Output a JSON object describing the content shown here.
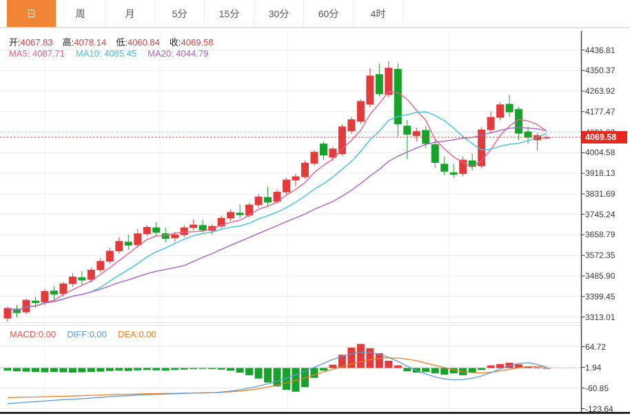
{
  "tabs": {
    "items": [
      {
        "label": "日",
        "active": true
      },
      {
        "label": "周",
        "active": false
      },
      {
        "label": "月",
        "active": false
      },
      {
        "label": "5分",
        "active": false
      },
      {
        "label": "15分",
        "active": false
      },
      {
        "label": "30分",
        "active": false
      },
      {
        "label": "60分",
        "active": false
      },
      {
        "label": "4时",
        "active": false
      }
    ]
  },
  "legend": {
    "ohlc": {
      "o_label": "开:",
      "o": "4067.83",
      "h_label": "高:",
      "h": "4078.14",
      "l_label": "低:",
      "l": "4060.84",
      "c_label": "收:",
      "c": "4069.58"
    },
    "ma": {
      "ma5": "MA5: 4087.71",
      "ma10": "MA10: 4085.45",
      "ma20": "MA20: 4044.79"
    },
    "macd": {
      "macd": "MACD:0.00",
      "diff": "DIFF:0.00",
      "dea": "DEA:0.00"
    }
  },
  "price_axis": {
    "labels": [
      "4436.81",
      "4350.37",
      "4263.92",
      "4177.47",
      "4091.02",
      "4004.58",
      "3918.13",
      "3831.69",
      "3745.24",
      "3658.79",
      "3572.35",
      "3485.90",
      "3399.45",
      "3313.01"
    ],
    "current": "4069.58"
  },
  "macd_axis": {
    "labels": [
      "64.72",
      "1.94",
      "-60.85",
      "-123.64"
    ]
  },
  "colors": {
    "up": "#e23b3c",
    "down": "#17a32b",
    "ma5": "#ee5d8c",
    "ma10": "#3fc3d8",
    "ma20": "#aa60c8",
    "diff": "#5b9bd5",
    "dea": "#ef7c22",
    "accent_tab": "#ef8435",
    "price_tag_bg": "#e8271d",
    "current_line": "#e8302f",
    "ref_dashed": "#9adbe8",
    "grid": "#ececec"
  },
  "chart_data": {
    "type": "candlestick",
    "title": "",
    "price_axis_ticks": [
      4436.81,
      4350.37,
      4263.92,
      4177.47,
      4091.02,
      4004.58,
      3918.13,
      3831.69,
      3745.24,
      3658.79,
      3572.35,
      3485.9,
      3399.45,
      3313.01
    ],
    "macd_axis_ticks": [
      64.72,
      1.94,
      -60.85,
      -123.64
    ],
    "current_price": 4069.58,
    "dashed_ref_price": 4092,
    "last_bar": {
      "open": 4067.83,
      "high": 4078.14,
      "low": 4060.84,
      "close": 4069.58
    },
    "ma_periods": [
      5,
      10,
      20
    ],
    "ylim": [
      3313.01,
      4436.81
    ],
    "grid": true,
    "candles_ohlc": [
      [
        3307,
        3356,
        3293,
        3351
      ],
      [
        3348,
        3364,
        3310,
        3330
      ],
      [
        3333,
        3392,
        3326,
        3385
      ],
      [
        3382,
        3398,
        3352,
        3372
      ],
      [
        3375,
        3430,
        3362,
        3422
      ],
      [
        3424,
        3442,
        3381,
        3408
      ],
      [
        3410,
        3462,
        3399,
        3454
      ],
      [
        3452,
        3497,
        3440,
        3483
      ],
      [
        3480,
        3506,
        3448,
        3467
      ],
      [
        3470,
        3522,
        3460,
        3512
      ],
      [
        3510,
        3562,
        3501,
        3549
      ],
      [
        3547,
        3606,
        3537,
        3592
      ],
      [
        3590,
        3650,
        3579,
        3633
      ],
      [
        3630,
        3660,
        3596,
        3614
      ],
      [
        3616,
        3684,
        3606,
        3665
      ],
      [
        3662,
        3700,
        3652,
        3692
      ],
      [
        3690,
        3712,
        3655,
        3668
      ],
      [
        3665,
        3690,
        3628,
        3642
      ],
      [
        3645,
        3672,
        3630,
        3660
      ],
      [
        3658,
        3700,
        3648,
        3690
      ],
      [
        3688,
        3725,
        3678,
        3702
      ],
      [
        3700,
        3722,
        3668,
        3678
      ],
      [
        3676,
        3705,
        3660,
        3696
      ],
      [
        3694,
        3740,
        3686,
        3730
      ],
      [
        3728,
        3765,
        3718,
        3755
      ],
      [
        3752,
        3788,
        3730,
        3742
      ],
      [
        3740,
        3795,
        3732,
        3786
      ],
      [
        3784,
        3830,
        3774,
        3820
      ],
      [
        3818,
        3862,
        3780,
        3795
      ],
      [
        3798,
        3850,
        3790,
        3840
      ],
      [
        3838,
        3900,
        3828,
        3891
      ],
      [
        3888,
        3916,
        3862,
        3905
      ],
      [
        3902,
        3972,
        3895,
        3962
      ],
      [
        3959,
        4016,
        3950,
        4008
      ],
      [
        4043,
        4052,
        3975,
        3993
      ],
      [
        3984,
        4030,
        3970,
        4022
      ],
      [
        3999,
        4124,
        3990,
        4115
      ],
      [
        4095,
        4155,
        4085,
        4145
      ],
      [
        4135,
        4230,
        4125,
        4222
      ],
      [
        4207,
        4360,
        4195,
        4329
      ],
      [
        4335,
        4381,
        4240,
        4251
      ],
      [
        4248,
        4390,
        4238,
        4362
      ],
      [
        4357,
        4381,
        4072,
        4124
      ],
      [
        4118,
        4142,
        3978,
        4081
      ],
      [
        4075,
        4110,
        4052,
        4095
      ],
      [
        4100,
        4118,
        4024,
        4042
      ],
      [
        4040,
        4058,
        3940,
        3962
      ],
      [
        3958,
        3990,
        3910,
        3925
      ],
      [
        3922,
        3958,
        3900,
        3912
      ],
      [
        3915,
        3988,
        3905,
        3975
      ],
      [
        3972,
        4000,
        3930,
        3945
      ],
      [
        3948,
        4112,
        3940,
        4102
      ],
      [
        4100,
        4178,
        4090,
        4155
      ],
      [
        4152,
        4218,
        4142,
        4208
      ],
      [
        4210,
        4248,
        4155,
        4175
      ],
      [
        4188,
        4198,
        4058,
        4085
      ],
      [
        4094,
        4114,
        4042,
        4068
      ],
      [
        4058,
        4088,
        4014,
        4078
      ],
      [
        4067.83,
        4078.14,
        4060.84,
        4069.58
      ]
    ],
    "macd_hist": [
      -8,
      -10,
      -11,
      -12,
      -13,
      -12,
      -13,
      -14,
      -13,
      -12,
      -11,
      -9,
      -8,
      -9,
      -7,
      -6,
      -7,
      -8,
      -6,
      -5,
      -3,
      -2,
      -3,
      -5,
      -8,
      -14,
      -22,
      -32,
      -44,
      -56,
      -66,
      -72,
      -58,
      -30,
      -8,
      10,
      40,
      62,
      73,
      60,
      45,
      22,
      8,
      -10,
      -14,
      -12,
      -16,
      -20,
      -16,
      -22,
      -14,
      -6,
      8,
      12,
      16,
      11,
      5,
      2,
      0.5
    ],
    "diff_line": [
      -108,
      -106,
      -104,
      -102,
      -100,
      -98,
      -96,
      -95,
      -93,
      -91,
      -89,
      -87,
      -85,
      -84,
      -82,
      -81,
      -80,
      -79,
      -78,
      -77,
      -76,
      -76,
      -75,
      -73,
      -70,
      -66,
      -61,
      -55,
      -48,
      -40,
      -31,
      -21,
      -10,
      2,
      14,
      26,
      35,
      43,
      48,
      47,
      42,
      32,
      20,
      6,
      -8,
      -18,
      -27,
      -33,
      -36,
      -35,
      -31,
      -24,
      -14,
      -3,
      7,
      14,
      16,
      11,
      2
    ],
    "dea_line": [
      -90,
      -89,
      -88,
      -88,
      -87,
      -86,
      -86,
      -85,
      -84,
      -83,
      -82,
      -81,
      -80,
      -80,
      -79,
      -78,
      -78,
      -77,
      -77,
      -76,
      -76,
      -75,
      -75,
      -74,
      -72,
      -70,
      -67,
      -63,
      -58,
      -52,
      -45,
      -38,
      -30,
      -21,
      -12,
      -4,
      4,
      12,
      19,
      25,
      29,
      31,
      30,
      27,
      22,
      15,
      8,
      1,
      -6,
      -11,
      -14,
      -15,
      -13,
      -9,
      -4,
      1,
      4,
      5,
      3
    ]
  }
}
